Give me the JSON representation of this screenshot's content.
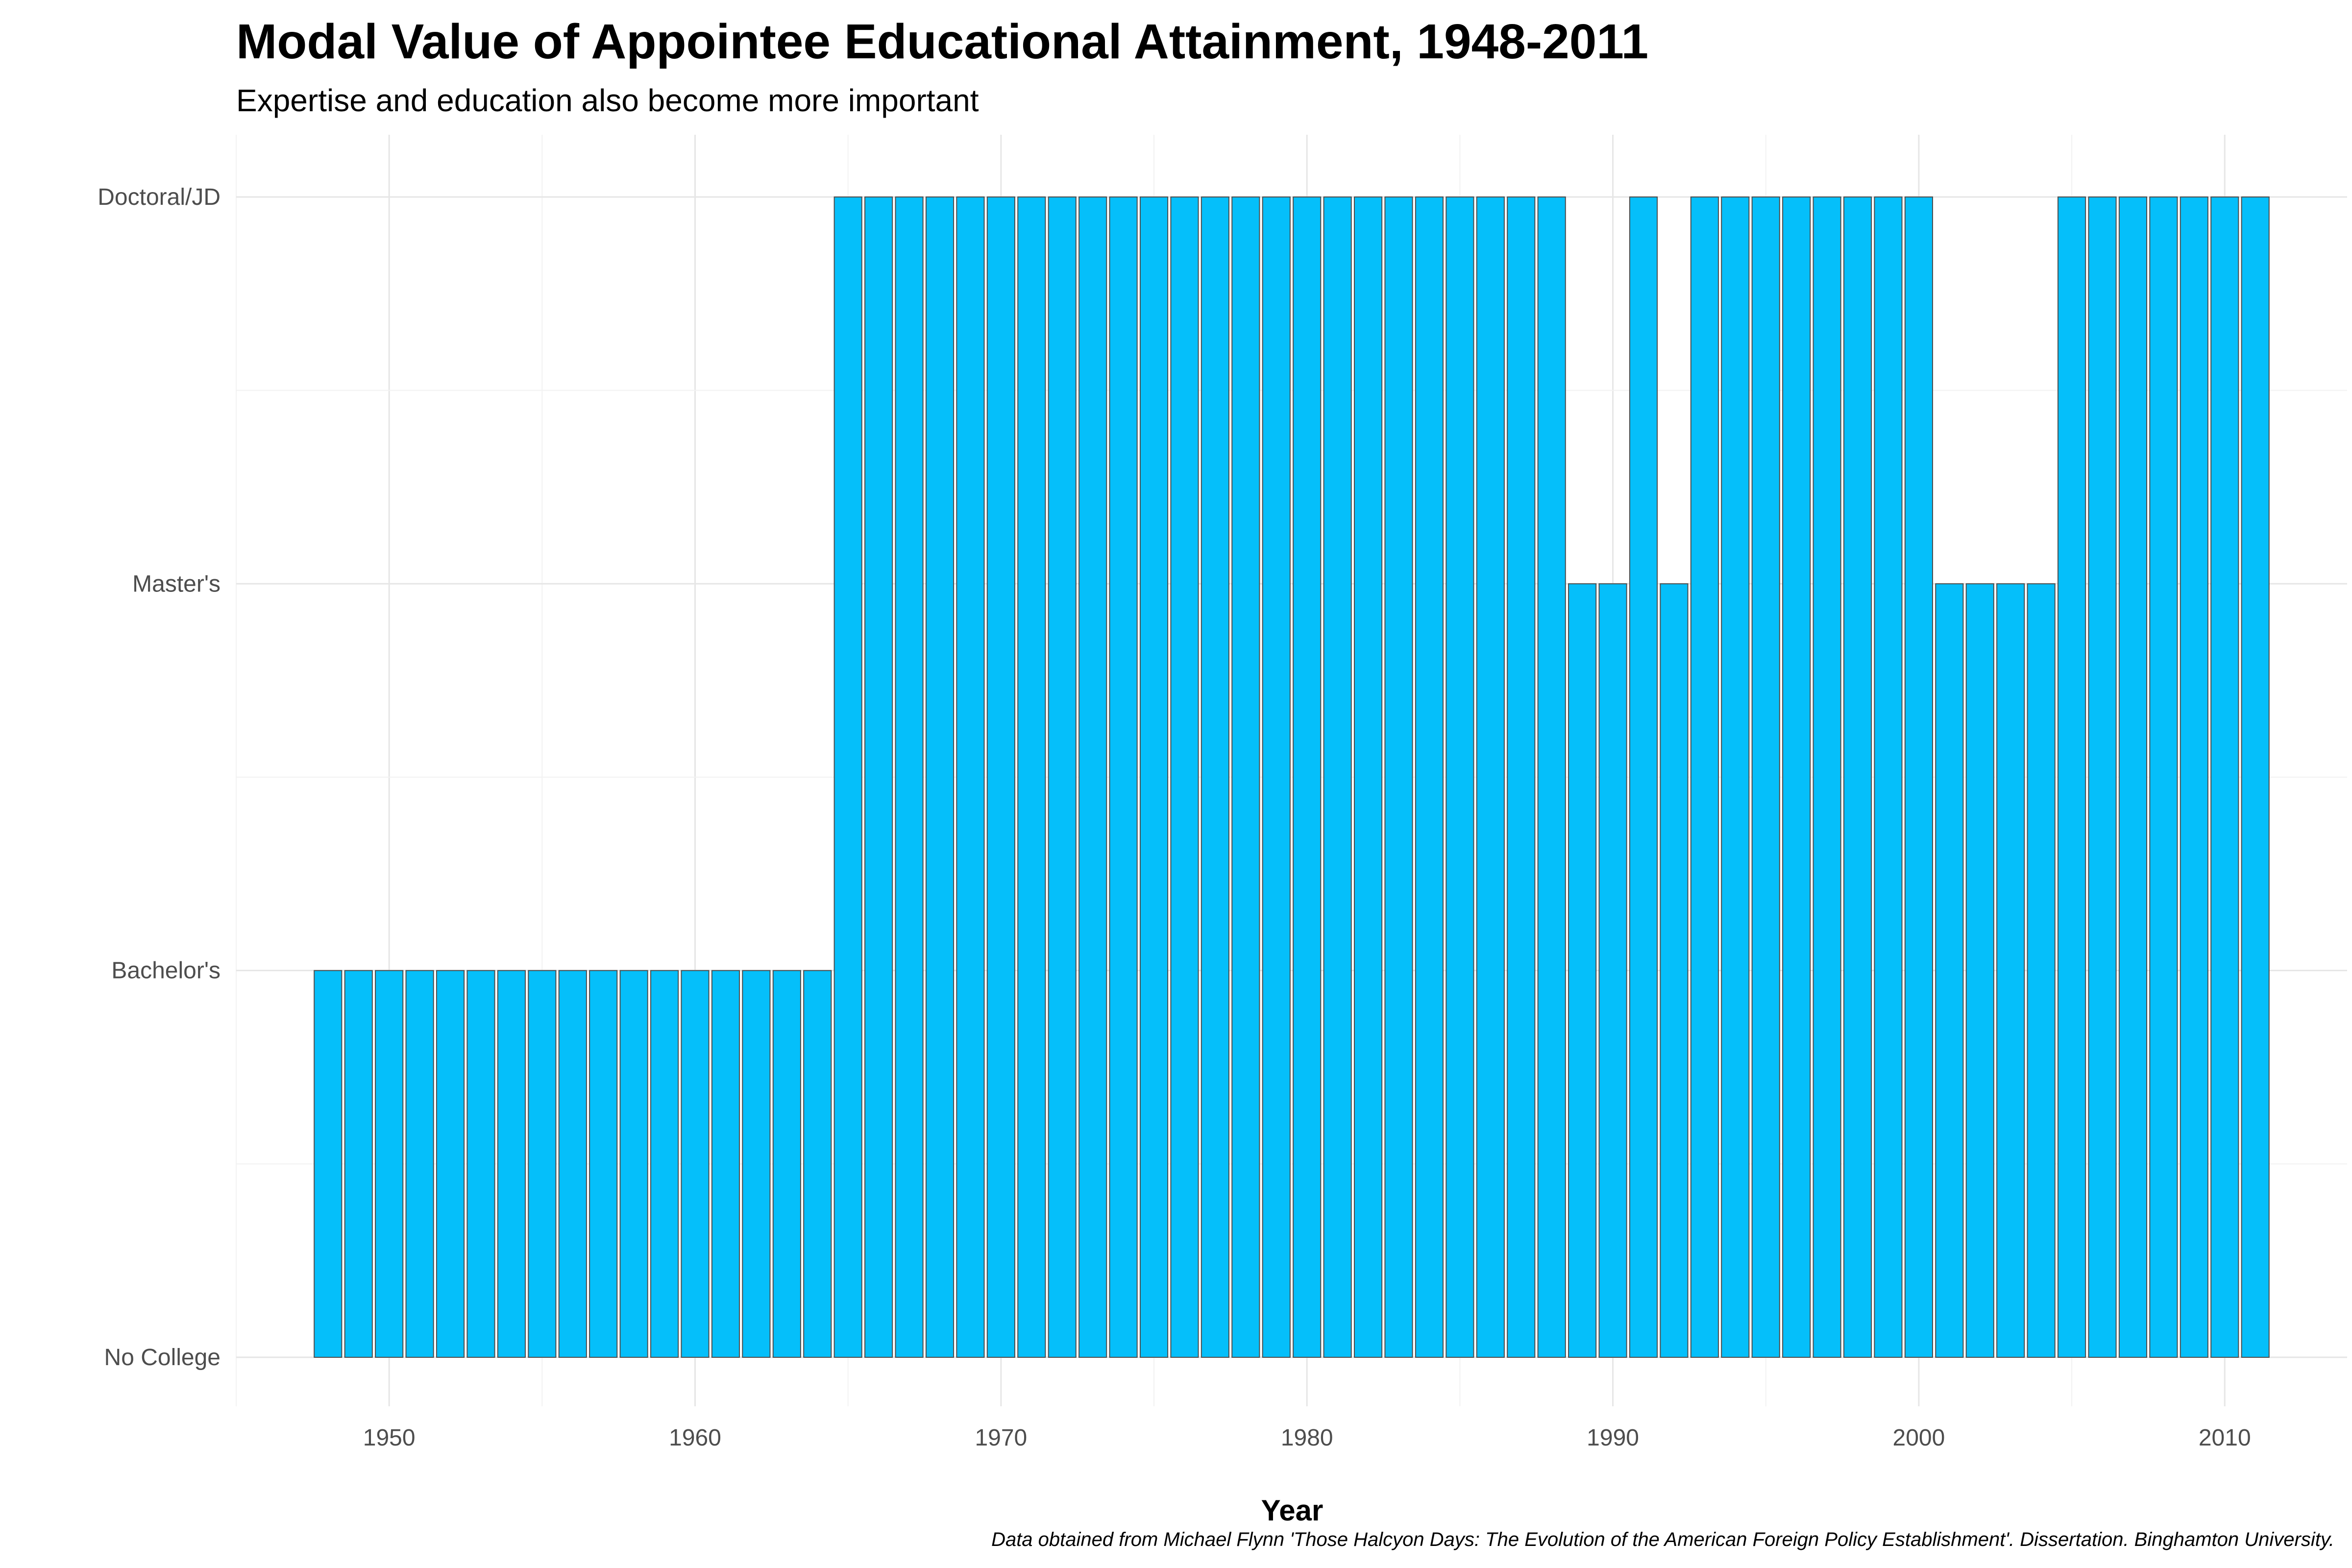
{
  "chart_data": {
    "type": "bar",
    "title": "Modal Value of Appointee Educational Attainment, 1948-2011",
    "subtitle": "Expertise and education also become more important",
    "xlabel": "Year",
    "ylabel": "",
    "caption": "Data obtained from Michael Flynn 'Those Halcyon Days: The Evolution of the American Foreign Policy Establishment'. Dissertation. Binghamton University.",
    "y_categories": [
      "No College",
      "Bachelor's",
      "Master's",
      "Doctoral/JD"
    ],
    "x_ticks": [
      1950,
      1960,
      1970,
      1980,
      1990,
      2000,
      2010
    ],
    "xlim": [
      1945,
      2014
    ],
    "ylim": [
      0,
      3
    ],
    "grid": true,
    "bar_color": "#05BFFA",
    "bar_outline_color": "#4d4d4d",
    "x": [
      1948,
      1949,
      1950,
      1951,
      1952,
      1953,
      1954,
      1955,
      1956,
      1957,
      1958,
      1959,
      1960,
      1961,
      1962,
      1963,
      1964,
      1965,
      1966,
      1967,
      1968,
      1969,
      1970,
      1971,
      1972,
      1973,
      1974,
      1975,
      1976,
      1977,
      1978,
      1979,
      1980,
      1981,
      1982,
      1983,
      1984,
      1985,
      1986,
      1987,
      1988,
      1989,
      1990,
      1991,
      1992,
      1993,
      1994,
      1995,
      1996,
      1997,
      1998,
      1999,
      2000,
      2001,
      2002,
      2003,
      2004,
      2005,
      2006,
      2007,
      2008,
      2009,
      2010,
      2011
    ],
    "values": [
      1,
      1,
      1,
      1,
      1,
      1,
      1,
      1,
      1,
      1,
      1,
      1,
      1,
      1,
      1,
      1,
      1,
      3,
      3,
      3,
      3,
      3,
      3,
      3,
      3,
      3,
      3,
      3,
      3,
      3,
      3,
      3,
      3,
      3,
      3,
      3,
      3,
      3,
      3,
      3,
      3,
      2,
      2,
      3,
      2,
      3,
      3,
      3,
      3,
      3,
      3,
      3,
      3,
      2,
      2,
      2,
      2,
      3,
      3,
      3,
      3,
      3,
      3,
      3
    ]
  }
}
